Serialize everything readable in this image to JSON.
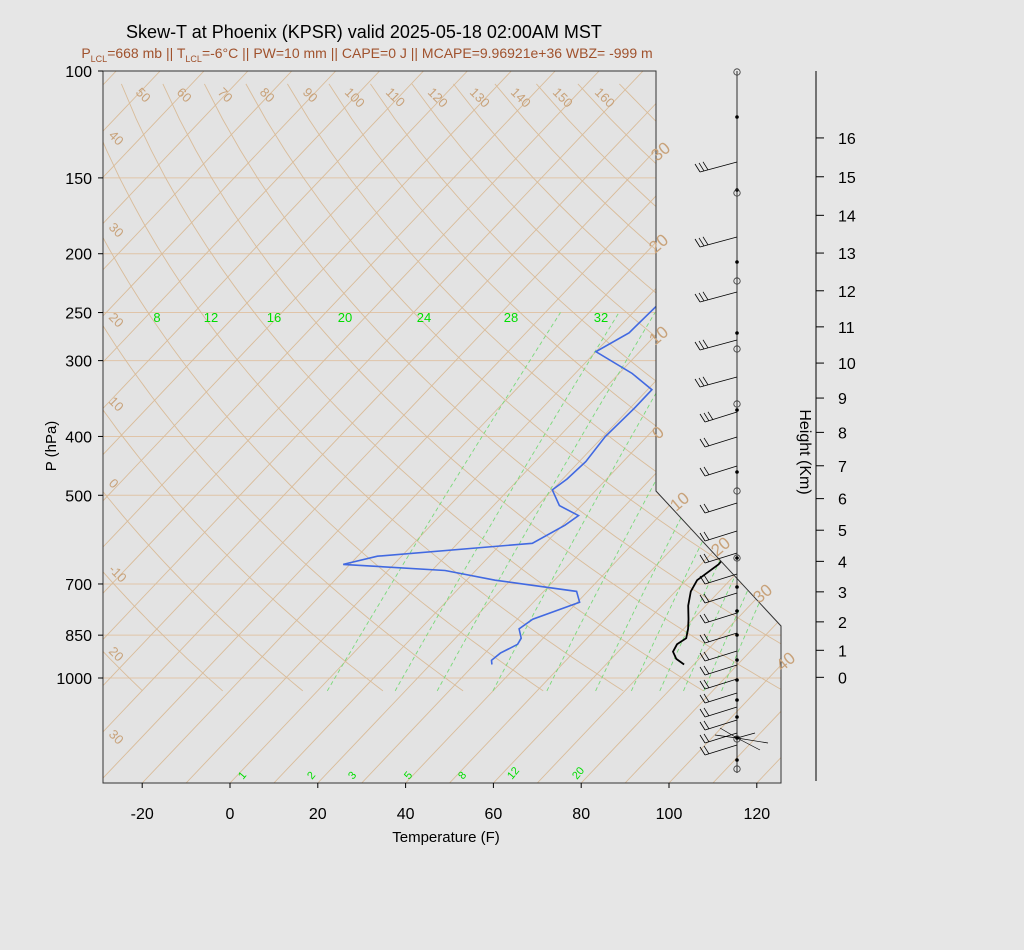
{
  "title": "Skew-T at Phoenix (KPSR) valid 2025-05-18 02:00AM MST",
  "subtitle": {
    "plcl_sym": "P",
    "plcl_sub": "LCL",
    "plcl_val": "=668 mb || ",
    "tlcl_sym": "T",
    "tlcl_sub": "LCL",
    "tlcl_val": "=-6°C || PW=10 mm || CAPE=0 J || MCAPE=9.96921e+36 WBZ= -999 m"
  },
  "colors": {
    "background": "#e6e6e6",
    "plot_bg": "#e3e3e3",
    "temperature": "#000000",
    "dewpoint": "#4169e1",
    "isotherm": "#d2b48c",
    "mixing_ratio": "#00dd00",
    "subtitle": "#a0522d"
  },
  "chart_data": {
    "type": "line",
    "title": "Skew-T at Phoenix (KPSR) valid 2025-05-18 02:00AM MST",
    "xlabel": "Temperature (F)",
    "ylabel": "P (hPa)",
    "y2label": "Height (Km)",
    "x_ticks": [
      -20,
      0,
      20,
      40,
      60,
      80,
      100,
      120
    ],
    "p_ticks": [
      100,
      150,
      200,
      250,
      300,
      400,
      500,
      700,
      850,
      1000
    ],
    "height_ticks": [
      {
        "km": 0,
        "p": 975
      },
      {
        "km": 1,
        "p": 880
      },
      {
        "km": 2,
        "p": 790
      },
      {
        "km": 3,
        "p": 705
      },
      {
        "km": 4,
        "p": 628
      },
      {
        "km": 5,
        "p": 558
      },
      {
        "km": 6,
        "p": 495
      },
      {
        "km": 7,
        "p": 437
      },
      {
        "km": 8,
        "p": 385
      },
      {
        "km": 9,
        "p": 338
      },
      {
        "km": 10,
        "p": 296
      },
      {
        "km": 11,
        "p": 258
      },
      {
        "km": 12,
        "p": 225
      },
      {
        "km": 13,
        "p": 195
      },
      {
        "km": 14,
        "p": 169
      },
      {
        "km": 15,
        "p": 146
      },
      {
        "km": 16,
        "p": 126
      }
    ],
    "isotherm_labels_top": [
      "50",
      "60",
      "70",
      "80",
      "90",
      "100",
      "110",
      "120",
      "130",
      "140",
      "150",
      "160"
    ],
    "isotherm_labels_left": [
      "40",
      "30",
      "20",
      "10",
      "0",
      "-10",
      "20",
      "30"
    ],
    "isotherm_labels_right": [
      "30",
      "20",
      "10",
      "0",
      "10",
      "20",
      "30",
      "40"
    ],
    "mixing_ratio_top_labels": [
      "8",
      "12",
      "16",
      "20",
      "24",
      "28",
      "32"
    ],
    "mixing_ratio_bottom_labels": [
      "1",
      "2",
      "3",
      "5",
      "8",
      "12",
      "20"
    ],
    "series": [
      {
        "name": "Temperature",
        "points": [
          [
            77.8,
            950
          ],
          [
            74.8,
            930
          ],
          [
            72.5,
            905
          ],
          [
            71.8,
            880
          ],
          [
            72.6,
            860
          ],
          [
            71.0,
            830
          ],
          [
            69.0,
            800
          ],
          [
            66.0,
            760
          ],
          [
            63.5,
            720
          ],
          [
            62.5,
            690
          ],
          [
            64.0,
            650
          ],
          [
            63.5,
            610
          ],
          [
            61.5,
            570
          ],
          [
            59.5,
            530
          ],
          [
            58.5,
            500
          ],
          [
            55.5,
            470
          ],
          [
            48.0,
            420
          ],
          [
            41.0,
            380
          ],
          [
            34.0,
            340
          ],
          [
            30.0,
            300
          ],
          [
            29.0,
            275
          ],
          [
            26.5,
            240
          ],
          [
            25.0,
            200
          ],
          [
            29.5,
            170
          ],
          [
            37.5,
            140
          ],
          [
            55.0,
            100
          ]
        ]
      },
      {
        "name": "Dewpoint",
        "points": [
          [
            34.0,
            950
          ],
          [
            33.0,
            935
          ],
          [
            33.5,
            910
          ],
          [
            35.5,
            880
          ],
          [
            35.0,
            860
          ],
          [
            32.5,
            830
          ],
          [
            33.5,
            800
          ],
          [
            40.5,
            750
          ],
          [
            37.5,
            720
          ],
          [
            16.5,
            690
          ],
          [
            3.0,
            665
          ],
          [
            -21.5,
            650
          ],
          [
            -15.5,
            630
          ],
          [
            17.0,
            600
          ],
          [
            20.5,
            560
          ],
          [
            21.5,
            540
          ],
          [
            15.0,
            520
          ],
          [
            10.0,
            490
          ],
          [
            11.0,
            470
          ],
          [
            11.5,
            440
          ],
          [
            10.5,
            400
          ],
          [
            11.0,
            360
          ],
          [
            11.0,
            335
          ],
          [
            3.0,
            315
          ],
          [
            -10.0,
            290
          ],
          [
            -6.5,
            270
          ],
          [
            -6.0,
            240
          ],
          [
            -3.0,
            220
          ],
          [
            -1.0,
            200
          ],
          [
            -0.5,
            175
          ],
          [
            -1.0,
            155
          ],
          [
            -3.5,
            130
          ],
          [
            19.0,
            100
          ]
        ]
      }
    ],
    "wind_profile": "barbs"
  }
}
